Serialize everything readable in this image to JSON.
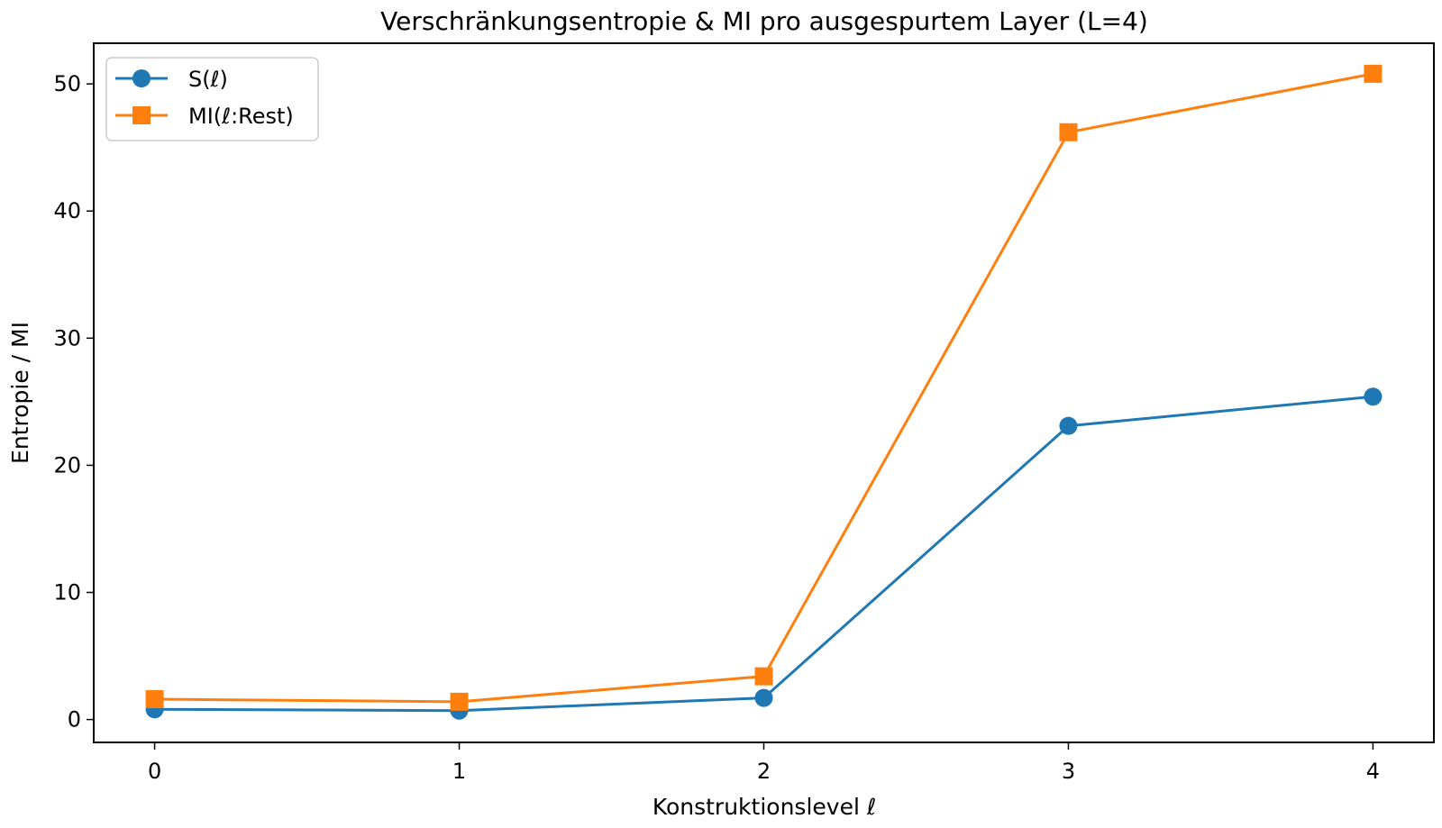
{
  "chart_data": {
    "type": "line",
    "title": "Verschränkungsentropie & MI pro ausgespurtem Layer (L=4)",
    "xlabel": "Konstruktionslevel ℓ",
    "ylabel": "Entropie / MI",
    "x": [
      0,
      1,
      2,
      3,
      4
    ],
    "xticks": [
      "0",
      "1",
      "2",
      "3",
      "4"
    ],
    "yticks": [
      "0",
      "10",
      "20",
      "30",
      "40",
      "50"
    ],
    "xlim": [
      -0.2,
      4.2
    ],
    "ylim": [
      -1.8,
      53.2
    ],
    "grid": false,
    "legend_position": "upper-left",
    "series": [
      {
        "name": "S(ℓ)",
        "marker": "circle",
        "color": "#1f77b4",
        "values": [
          0.8,
          0.7,
          1.7,
          23.1,
          25.4
        ]
      },
      {
        "name": "MI(ℓ:Rest)",
        "marker": "square",
        "color": "#ff7f0e",
        "values": [
          1.6,
          1.4,
          3.4,
          46.2,
          50.8
        ]
      }
    ]
  }
}
